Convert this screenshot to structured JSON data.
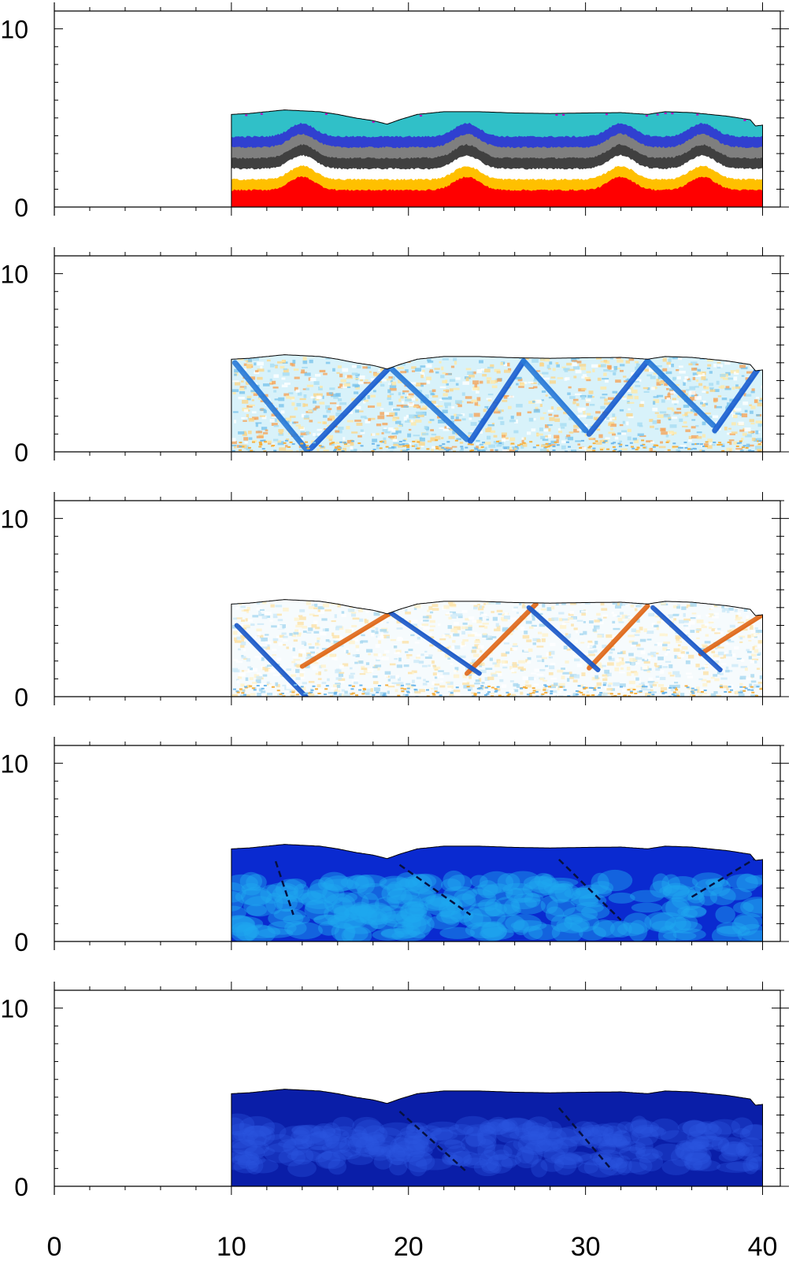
{
  "chart_data": {
    "type": "heatmap",
    "description_of_layout": "five stacked panels sharing the x axis",
    "x_range": [
      0,
      41
    ],
    "y_range": [
      0,
      11
    ],
    "x_ticks": [
      0,
      10,
      20,
      30,
      40
    ],
    "y_ticks": [
      0,
      10
    ],
    "x_tick_labels": [
      "0",
      "10",
      "20",
      "30",
      "40"
    ],
    "y_tick_labels": [
      "0",
      "10"
    ],
    "domain_x": [
      10,
      40
    ],
    "surface_profile": [
      [
        10,
        5.2
      ],
      [
        11,
        5.25
      ],
      [
        12,
        5.35
      ],
      [
        13,
        5.45
      ],
      [
        14,
        5.4
      ],
      [
        15,
        5.35
      ],
      [
        16,
        5.2
      ],
      [
        17,
        5.0
      ],
      [
        18,
        4.85
      ],
      [
        18.8,
        4.65
      ],
      [
        19.5,
        4.9
      ],
      [
        20.5,
        5.2
      ],
      [
        22,
        5.35
      ],
      [
        24,
        5.35
      ],
      [
        26,
        5.28
      ],
      [
        28,
        5.25
      ],
      [
        30,
        5.28
      ],
      [
        32,
        5.3
      ],
      [
        33.5,
        5.2
      ],
      [
        34.5,
        5.35
      ],
      [
        36,
        5.3
      ],
      [
        38,
        5.1
      ],
      [
        39.3,
        4.9
      ],
      [
        39.6,
        4.55
      ],
      [
        40,
        4.6
      ]
    ],
    "panels": [
      {
        "name": "layers",
        "style": "layers",
        "layer_colors": [
          "#ff0000",
          "#ffc000",
          "#ffffff",
          "#404040",
          "#7f7f7f",
          "#3040d0",
          "#30c0c8"
        ],
        "accent_color": "#c000c0"
      },
      {
        "name": "field-2",
        "style": "diverging",
        "shear_bands": [
          [
            [
              10.2,
              5.0
            ],
            [
              14.3,
              0.05
            ]
          ],
          [
            [
              14.5,
              0.2
            ],
            [
              18.8,
              4.6
            ]
          ],
          [
            [
              19.0,
              4.7
            ],
            [
              23.3,
              0.7
            ]
          ],
          [
            [
              23.5,
              0.6
            ],
            [
              26.5,
              5.1
            ]
          ],
          [
            [
              26.5,
              5.1
            ],
            [
              30.0,
              1.2
            ]
          ],
          [
            [
              30.2,
              1.0
            ],
            [
              33.5,
              5.1
            ]
          ],
          [
            [
              33.5,
              5.1
            ],
            [
              37.2,
              1.5
            ]
          ],
          [
            [
              37.3,
              1.2
            ],
            [
              39.7,
              4.6
            ]
          ]
        ]
      },
      {
        "name": "field-3",
        "style": "diverging",
        "bands_positive": [
          [
            [
              14.0,
              1.7
            ],
            [
              19.0,
              4.7
            ]
          ],
          [
            [
              23.3,
              1.3
            ],
            [
              27.2,
              5.2
            ]
          ],
          [
            [
              30.2,
              1.6
            ],
            [
              33.5,
              5.1
            ]
          ],
          [
            [
              36.5,
              2.4
            ],
            [
              40.0,
              4.6
            ]
          ]
        ],
        "bands_negative": [
          [
            [
              19.0,
              4.7
            ],
            [
              24.0,
              1.3
            ]
          ],
          [
            [
              26.8,
              5.0
            ],
            [
              30.7,
              1.5
            ]
          ],
          [
            [
              33.8,
              5.0
            ],
            [
              37.6,
              1.5
            ]
          ],
          [
            [
              10.3,
              4.0
            ],
            [
              14.2,
              0.0
            ]
          ]
        ]
      },
      {
        "name": "field-4",
        "style": "blue",
        "dark_lines": [
          [
            [
              12.5,
              4.5
            ],
            [
              13.5,
              1.5
            ]
          ],
          [
            [
              19.5,
              4.3
            ],
            [
              23.5,
              1.5
            ]
          ],
          [
            [
              28.5,
              4.6
            ],
            [
              32.0,
              1.2
            ]
          ],
          [
            [
              36.0,
              2.5
            ],
            [
              39.5,
              4.6
            ]
          ]
        ]
      },
      {
        "name": "field-5",
        "style": "blue-dark",
        "dark_lines": [
          [
            [
              19.5,
              4.2
            ],
            [
              23.3,
              0.8
            ]
          ],
          [
            [
              28.5,
              4.4
            ],
            [
              31.5,
              0.9
            ]
          ]
        ]
      }
    ]
  }
}
